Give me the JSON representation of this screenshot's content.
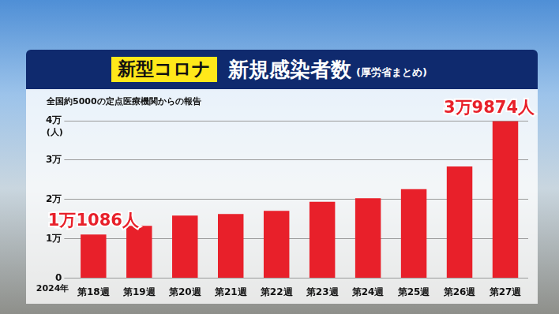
{
  "chart_data": {
    "type": "bar",
    "title": {
      "tag": "新型コロナ",
      "text": "新規感染者数",
      "note": "(厚労省まとめ)"
    },
    "subtitle": "全国約5000の定点医療機関からの報告",
    "ylabel": "(人)",
    "xlabel": "2024年",
    "categories": [
      "第18週",
      "第19週",
      "第20週",
      "第21週",
      "第22週",
      "第23週",
      "第24週",
      "第25週",
      "第26週",
      "第27週"
    ],
    "values": [
      11086,
      13300,
      15900,
      16300,
      17100,
      19400,
      20300,
      22600,
      28400,
      39874
    ],
    "color": "#e8202a",
    "ylim": [
      0,
      40000
    ],
    "yticks": [
      0,
      {
        "value": 10000,
        "label": "1万"
      },
      {
        "value": 20000,
        "label": "2万"
      },
      {
        "value": 30000,
        "label": "3万"
      },
      {
        "value": 40000,
        "label": "4万"
      }
    ],
    "grid": true,
    "annotations": [
      {
        "category": "第18週",
        "text": "1万1086人"
      },
      {
        "category": "第27週",
        "text": "3万9874人"
      }
    ]
  }
}
